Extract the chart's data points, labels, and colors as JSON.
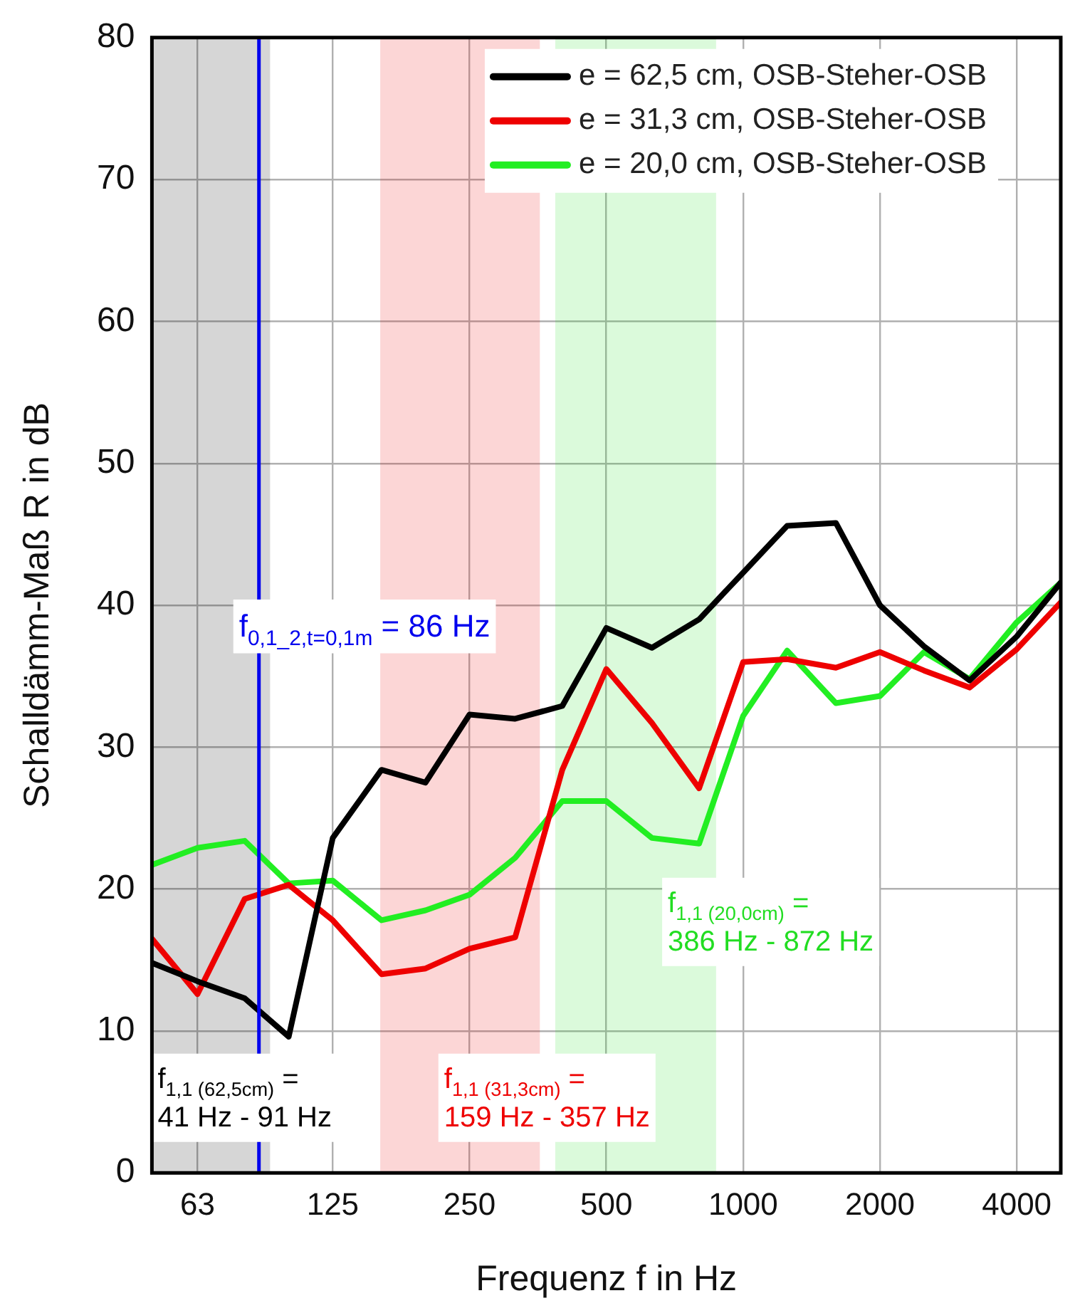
{
  "chart_data": {
    "type": "line",
    "xlabel": "Frequenz f in Hz",
    "ylabel": "Schalldämm-Maß R in dB",
    "x": [
      50,
      63,
      80,
      100,
      125,
      160,
      200,
      250,
      315,
      400,
      500,
      630,
      800,
      1000,
      1250,
      1600,
      2000,
      2500,
      3150,
      4000,
      5000
    ],
    "series": [
      {
        "name": "e = 62,5 cm, OSB-Steher-OSB",
        "color": "#000000",
        "values": [
          14.8,
          13.5,
          12.3,
          9.6,
          23.6,
          28.4,
          27.5,
          32.3,
          32.0,
          32.9,
          38.4,
          37.0,
          39.0,
          42.3,
          45.6,
          45.8,
          40.0,
          37.1,
          34.7,
          37.8,
          41.6
        ]
      },
      {
        "name": "e = 31,3 cm, OSB-Steher-OSB",
        "color": "#ee0000",
        "values": [
          16.5,
          12.6,
          19.3,
          20.3,
          17.8,
          14.0,
          14.4,
          15.8,
          16.6,
          28.4,
          35.5,
          31.7,
          27.1,
          36.0,
          36.2,
          35.6,
          36.7,
          35.4,
          34.2,
          36.9,
          40.2
        ]
      },
      {
        "name": "e = 20,0 cm, OSB-Steher-OSB",
        "color": "#22ee22",
        "values": [
          21.7,
          22.9,
          23.4,
          20.4,
          20.6,
          17.8,
          18.5,
          19.6,
          22.2,
          26.2,
          26.2,
          23.6,
          23.2,
          32.2,
          36.8,
          33.1,
          33.6,
          36.7,
          34.8,
          38.8,
          41.6
        ]
      }
    ],
    "log": "x",
    "xlim": [
      50,
      5000
    ],
    "xticks": [
      63,
      125,
      250,
      500,
      1000,
      2000,
      4000
    ],
    "ylim": [
      0,
      80
    ],
    "yticks": [
      0,
      10,
      20,
      30,
      40,
      50,
      60,
      70,
      80
    ],
    "grid": true,
    "legend": "top right",
    "marker": "none",
    "line_style": "solid",
    "ref_lines": [
      {
        "axis": "x",
        "value": 86,
        "label": "f$_{0,1_2,t=0,1m}$ = 86 Hz",
        "color": "#0000ee"
      }
    ],
    "bands": [
      {
        "axis": "x",
        "from": 41,
        "to": 91,
        "label": "f$_{1,1 (62,5cm)}$ =\n41 Hz - 91 Hz",
        "color": "#000000"
      },
      {
        "axis": "x",
        "from": 159,
        "to": 357,
        "label": "f$_{1,1 (31,3cm)}$ =\n159 Hz - 357 Hz",
        "color": "#ee0000"
      },
      {
        "axis": "x",
        "from": 386,
        "to": 872,
        "label": "f$_{1,1 (20,0cm)}$ =\n386 Hz - 872 Hz",
        "color": "#22dd22"
      }
    ]
  }
}
